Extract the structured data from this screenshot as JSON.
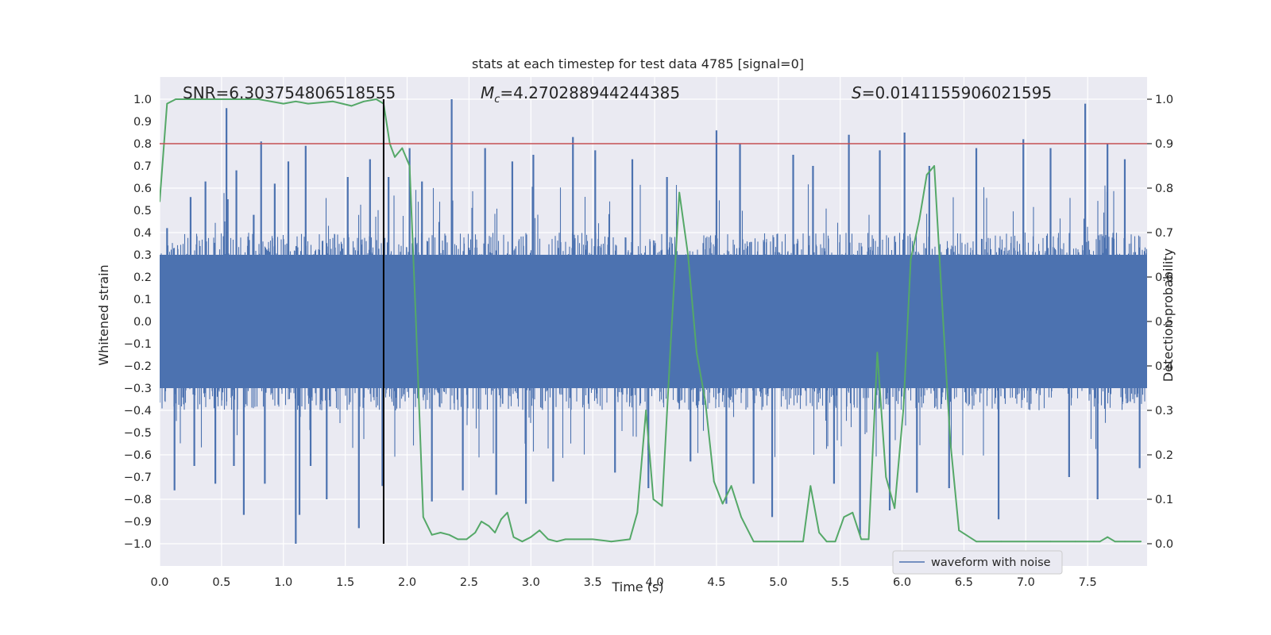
{
  "chart_data": {
    "type": "line",
    "title": "stats at each timestep for test data 4785 [signal=0]",
    "xlabel": "Time (s)",
    "ylabel_left": "Whitened strain",
    "ylabel_right": "Detection probability",
    "xlim": [
      0,
      7.98
    ],
    "ylim_left": [
      -1.1,
      1.1
    ],
    "ylim_right": [
      -0.05,
      1.05
    ],
    "x_ticks": [
      "0.0",
      "0.5",
      "1.0",
      "1.5",
      "2.0",
      "2.5",
      "3.0",
      "3.5",
      "4.0",
      "4.5",
      "5.0",
      "5.5",
      "6.0",
      "6.5",
      "7.0",
      "7.5"
    ],
    "y_ticks_left": [
      "1.0",
      "0.9",
      "0.8",
      "0.7",
      "0.6",
      "0.5",
      "0.4",
      "0.3",
      "0.2",
      "0.1",
      "0.0",
      "−0.1",
      "−0.2",
      "−0.3",
      "−0.4",
      "−0.5",
      "−0.6",
      "−0.7",
      "−0.8",
      "−0.9",
      "−1.0"
    ],
    "y_ticks_right": [
      "1.0",
      "0.9",
      "0.8",
      "0.7",
      "0.6",
      "0.5",
      "0.4",
      "0.3",
      "0.2",
      "0.1",
      "0.0"
    ],
    "annotations": {
      "snr": "SNR=6.303754806518555",
      "mc_symbol": "M",
      "mc_sub": "c",
      "mc_value": "=4.270288944244385",
      "s_symbol": "S",
      "s_value": "=0.0141155906021595"
    },
    "threshold_line": {
      "y_right": 0.9,
      "color": "#c44e52"
    },
    "marker_line": {
      "x": 1.81,
      "color": "#000000"
    },
    "legend": [
      {
        "label": "waveform with noise",
        "color": "#4c72b0"
      }
    ],
    "series": [
      {
        "name": "waveform with noise",
        "axis": "left",
        "color": "#4c72b0",
        "style": "noise",
        "typical_amplitude": 0.4,
        "spikes": [
          [
            0.06,
            0.42
          ],
          [
            0.12,
            -0.76
          ],
          [
            0.25,
            0.56
          ],
          [
            0.28,
            -0.65
          ],
          [
            0.37,
            0.63
          ],
          [
            0.45,
            -0.73
          ],
          [
            0.54,
            0.96
          ],
          [
            0.55,
            0.55
          ],
          [
            0.6,
            -0.65
          ],
          [
            0.62,
            0.68
          ],
          [
            0.68,
            -0.87
          ],
          [
            0.76,
            0.48
          ],
          [
            0.82,
            0.81
          ],
          [
            0.85,
            -0.73
          ],
          [
            0.93,
            0.62
          ],
          [
            1.04,
            0.72
          ],
          [
            1.1,
            -1.0
          ],
          [
            1.13,
            -0.87
          ],
          [
            1.18,
            0.79
          ],
          [
            1.22,
            -0.65
          ],
          [
            1.35,
            -0.8
          ],
          [
            1.52,
            0.65
          ],
          [
            1.61,
            -0.93
          ],
          [
            1.7,
            0.73
          ],
          [
            1.8,
            -0.74
          ],
          [
            1.85,
            0.65
          ],
          [
            2.02,
            0.78
          ],
          [
            2.12,
            0.63
          ],
          [
            2.2,
            -0.81
          ],
          [
            2.36,
            1.0
          ],
          [
            2.45,
            -0.76
          ],
          [
            2.63,
            0.78
          ],
          [
            2.72,
            -0.78
          ],
          [
            2.85,
            0.72
          ],
          [
            2.96,
            -0.82
          ],
          [
            3.02,
            0.75
          ],
          [
            3.18,
            -0.72
          ],
          [
            3.34,
            0.83
          ],
          [
            3.52,
            0.77
          ],
          [
            3.68,
            -0.68
          ],
          [
            3.82,
            0.73
          ],
          [
            3.95,
            -0.75
          ],
          [
            4.1,
            0.65
          ],
          [
            4.29,
            -0.63
          ],
          [
            4.5,
            0.86
          ],
          [
            4.58,
            -0.82
          ],
          [
            4.69,
            0.8
          ],
          [
            4.8,
            -0.73
          ],
          [
            4.95,
            -0.88
          ],
          [
            5.12,
            0.75
          ],
          [
            5.28,
            0.7
          ],
          [
            5.45,
            -0.73
          ],
          [
            5.57,
            0.84
          ],
          [
            5.66,
            -0.96
          ],
          [
            5.82,
            0.77
          ],
          [
            5.9,
            -0.85
          ],
          [
            6.02,
            0.85
          ],
          [
            6.12,
            -0.77
          ],
          [
            6.22,
            0.7
          ],
          [
            6.38,
            -0.75
          ],
          [
            6.6,
            0.78
          ],
          [
            6.78,
            -0.89
          ],
          [
            6.98,
            0.82
          ],
          [
            7.2,
            0.78
          ],
          [
            7.35,
            -0.7
          ],
          [
            7.48,
            0.98
          ],
          [
            7.58,
            -0.8
          ],
          [
            7.66,
            0.8
          ],
          [
            7.8,
            0.73
          ],
          [
            7.92,
            -0.66
          ]
        ]
      },
      {
        "name": "detection probability",
        "axis": "right",
        "color": "#55a868",
        "x": [
          0.0,
          0.06,
          0.13,
          0.3,
          0.5,
          0.8,
          1.0,
          1.1,
          1.2,
          1.4,
          1.55,
          1.65,
          1.75,
          1.81,
          1.86,
          1.9,
          1.96,
          2.02,
          2.07,
          2.13,
          2.2,
          2.27,
          2.34,
          2.41,
          2.48,
          2.55,
          2.6,
          2.66,
          2.71,
          2.76,
          2.81,
          2.86,
          2.93,
          3.0,
          3.07,
          3.14,
          3.21,
          3.28,
          3.35,
          3.5,
          3.65,
          3.8,
          3.86,
          3.93,
          3.99,
          4.06,
          4.13,
          4.2,
          4.27,
          4.34,
          4.41,
          4.48,
          4.55,
          4.62,
          4.7,
          4.8,
          4.9,
          5.0,
          5.13,
          5.2,
          5.26,
          5.33,
          5.39,
          5.46,
          5.53,
          5.6,
          5.67,
          5.73,
          5.8,
          5.87,
          5.94,
          6.01,
          6.07,
          6.14,
          6.2,
          6.26,
          6.33,
          6.39,
          6.46,
          6.6,
          6.8,
          7.0,
          7.2,
          7.4,
          7.55,
          7.6,
          7.66,
          7.72,
          7.8,
          7.93
        ],
        "values": [
          0.77,
          0.99,
          1.0,
          1.0,
          1.0,
          1.0,
          0.99,
          0.995,
          0.99,
          0.995,
          0.985,
          0.995,
          1.0,
          0.99,
          0.9,
          0.87,
          0.89,
          0.85,
          0.51,
          0.06,
          0.02,
          0.025,
          0.02,
          0.01,
          0.01,
          0.025,
          0.05,
          0.04,
          0.025,
          0.055,
          0.07,
          0.015,
          0.005,
          0.015,
          0.03,
          0.01,
          0.005,
          0.01,
          0.01,
          0.01,
          0.005,
          0.01,
          0.07,
          0.3,
          0.1,
          0.085,
          0.45,
          0.79,
          0.65,
          0.43,
          0.32,
          0.14,
          0.09,
          0.13,
          0.06,
          0.005,
          0.005,
          0.005,
          0.005,
          0.005,
          0.13,
          0.025,
          0.005,
          0.005,
          0.06,
          0.07,
          0.01,
          0.01,
          0.43,
          0.15,
          0.08,
          0.3,
          0.64,
          0.73,
          0.83,
          0.85,
          0.51,
          0.23,
          0.03,
          0.005,
          0.005,
          0.005,
          0.005,
          0.005,
          0.005,
          0.005,
          0.015,
          0.005,
          0.005,
          0.005
        ]
      }
    ]
  }
}
